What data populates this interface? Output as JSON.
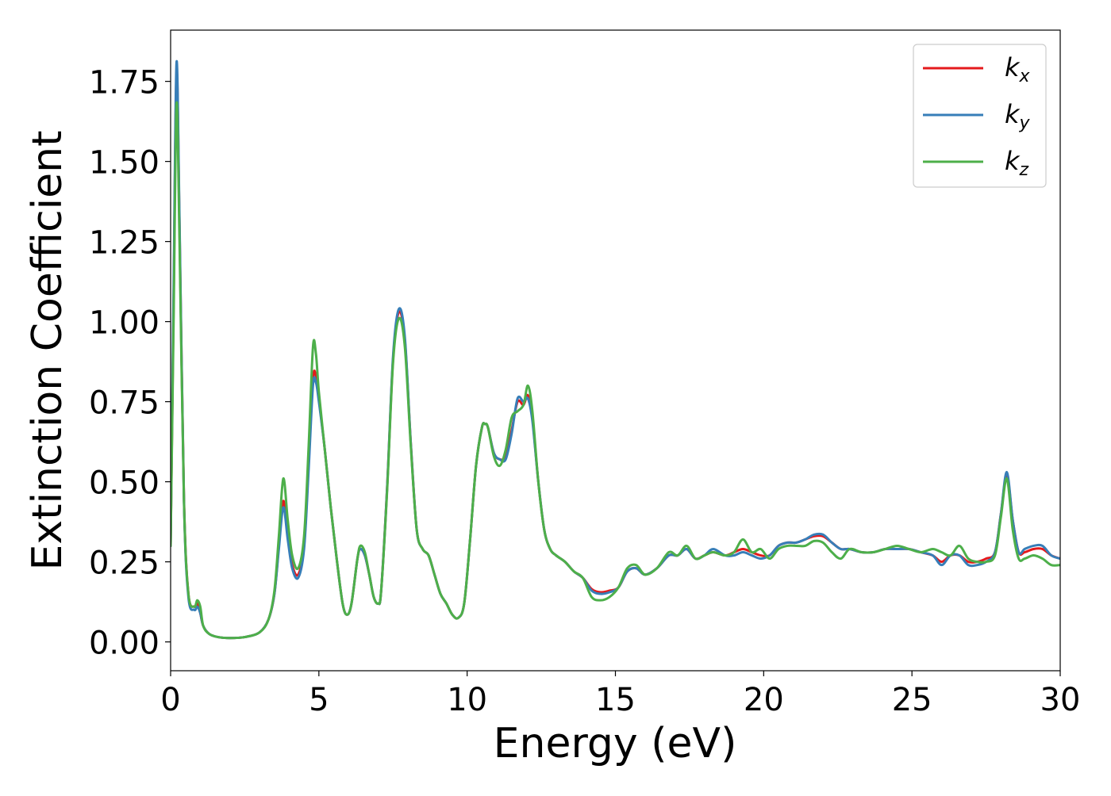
{
  "chart_data": {
    "type": "line",
    "title": "",
    "xlabel": "Energy (eV)",
    "ylabel": "Extinction Coefficient",
    "xlim": [
      0,
      30
    ],
    "ylim": [
      -0.09,
      1.91
    ],
    "xticks": [
      0,
      5,
      10,
      15,
      20,
      25,
      30
    ],
    "xtick_labels": [
      "0",
      "5",
      "10",
      "15",
      "20",
      "25",
      "30"
    ],
    "yticks": [
      0.0,
      0.25,
      0.5,
      0.75,
      1.0,
      1.25,
      1.5,
      1.75
    ],
    "ytick_labels": [
      "0.00",
      "0.25",
      "0.50",
      "0.75",
      "1.00",
      "1.25",
      "1.50",
      "1.75"
    ],
    "grid": false,
    "legend_position": "top-right",
    "x": [
      0,
      0.1,
      0.2,
      0.3,
      0.45,
      0.6,
      0.8,
      0.9,
      1.0,
      1.1,
      1.3,
      1.6,
      2.0,
      2.5,
      3.0,
      3.3,
      3.5,
      3.65,
      3.8,
      3.95,
      4.1,
      4.3,
      4.5,
      4.65,
      4.8,
      4.9,
      5.0,
      5.2,
      5.4,
      5.6,
      5.8,
      5.95,
      6.1,
      6.3,
      6.4,
      6.55,
      6.7,
      6.85,
      7.0,
      7.1,
      7.3,
      7.5,
      7.7,
      7.9,
      8.1,
      8.3,
      8.5,
      8.7,
      8.9,
      9.1,
      9.3,
      9.5,
      9.7,
      9.9,
      10.1,
      10.3,
      10.5,
      10.6,
      10.7,
      10.9,
      11.1,
      11.3,
      11.5,
      11.7,
      11.9,
      12.05,
      12.2,
      12.4,
      12.6,
      12.8,
      13.0,
      13.3,
      13.6,
      13.9,
      14.2,
      14.5,
      14.8,
      15.1,
      15.4,
      15.7,
      16.0,
      16.4,
      16.8,
      17.1,
      17.4,
      17.7,
      18.0,
      18.3,
      18.7,
      19.0,
      19.3,
      19.6,
      19.9,
      20.2,
      20.5,
      20.8,
      21.1,
      21.4,
      21.7,
      22.0,
      22.3,
      22.6,
      22.9,
      23.3,
      23.7,
      24.1,
      24.5,
      24.9,
      25.3,
      25.7,
      26.0,
      26.3,
      26.6,
      26.9,
      27.2,
      27.5,
      27.8,
      28.0,
      28.2,
      28.4,
      28.6,
      28.8,
      29.1,
      29.4,
      29.7,
      30.0
    ],
    "series": [
      {
        "name": "k_x",
        "label": "k",
        "subscript": "x",
        "color": "#e41a1c",
        "values": [
          0.3,
          1.05,
          1.78,
          1.3,
          0.45,
          0.15,
          0.11,
          0.12,
          0.09,
          0.05,
          0.025,
          0.015,
          0.012,
          0.015,
          0.03,
          0.07,
          0.15,
          0.3,
          0.44,
          0.33,
          0.24,
          0.21,
          0.3,
          0.55,
          0.82,
          0.83,
          0.76,
          0.6,
          0.42,
          0.26,
          0.12,
          0.085,
          0.12,
          0.26,
          0.29,
          0.27,
          0.21,
          0.14,
          0.12,
          0.16,
          0.48,
          0.88,
          1.03,
          0.94,
          0.62,
          0.35,
          0.29,
          0.27,
          0.21,
          0.15,
          0.12,
          0.085,
          0.075,
          0.12,
          0.32,
          0.55,
          0.67,
          0.68,
          0.67,
          0.59,
          0.57,
          0.58,
          0.66,
          0.75,
          0.74,
          0.77,
          0.7,
          0.5,
          0.35,
          0.29,
          0.27,
          0.25,
          0.22,
          0.2,
          0.165,
          0.155,
          0.16,
          0.17,
          0.22,
          0.23,
          0.21,
          0.23,
          0.27,
          0.27,
          0.29,
          0.26,
          0.27,
          0.28,
          0.27,
          0.28,
          0.29,
          0.28,
          0.27,
          0.27,
          0.3,
          0.31,
          0.31,
          0.32,
          0.33,
          0.33,
          0.31,
          0.29,
          0.29,
          0.28,
          0.28,
          0.29,
          0.29,
          0.29,
          0.28,
          0.27,
          0.25,
          0.27,
          0.27,
          0.25,
          0.25,
          0.26,
          0.28,
          0.4,
          0.52,
          0.38,
          0.28,
          0.28,
          0.29,
          0.29,
          0.27,
          0.26
        ]
      },
      {
        "name": "k_y",
        "label": "k",
        "subscript": "y",
        "color": "#377eb8",
        "values": [
          0.3,
          1.1,
          1.81,
          1.32,
          0.44,
          0.14,
          0.1,
          0.11,
          0.09,
          0.05,
          0.025,
          0.015,
          0.012,
          0.015,
          0.03,
          0.07,
          0.15,
          0.29,
          0.42,
          0.32,
          0.23,
          0.2,
          0.29,
          0.53,
          0.8,
          0.81,
          0.75,
          0.6,
          0.42,
          0.26,
          0.12,
          0.085,
          0.12,
          0.26,
          0.29,
          0.27,
          0.21,
          0.14,
          0.12,
          0.16,
          0.48,
          0.89,
          1.04,
          0.95,
          0.62,
          0.35,
          0.29,
          0.27,
          0.21,
          0.15,
          0.12,
          0.085,
          0.075,
          0.12,
          0.32,
          0.55,
          0.67,
          0.68,
          0.67,
          0.59,
          0.57,
          0.57,
          0.65,
          0.76,
          0.75,
          0.76,
          0.69,
          0.5,
          0.35,
          0.29,
          0.27,
          0.25,
          0.22,
          0.2,
          0.16,
          0.15,
          0.155,
          0.17,
          0.22,
          0.23,
          0.21,
          0.23,
          0.27,
          0.27,
          0.29,
          0.26,
          0.27,
          0.29,
          0.27,
          0.27,
          0.28,
          0.27,
          0.26,
          0.27,
          0.3,
          0.31,
          0.31,
          0.32,
          0.335,
          0.335,
          0.31,
          0.29,
          0.29,
          0.28,
          0.28,
          0.29,
          0.29,
          0.29,
          0.28,
          0.27,
          0.24,
          0.27,
          0.27,
          0.24,
          0.24,
          0.25,
          0.28,
          0.4,
          0.53,
          0.38,
          0.28,
          0.29,
          0.3,
          0.3,
          0.27,
          0.26
        ]
      },
      {
        "name": "k_z",
        "label": "k",
        "subscript": "z",
        "color": "#4daf4a",
        "values": [
          0.3,
          1.0,
          1.68,
          1.25,
          0.44,
          0.15,
          0.11,
          0.13,
          0.11,
          0.05,
          0.025,
          0.015,
          0.012,
          0.015,
          0.03,
          0.07,
          0.16,
          0.33,
          0.51,
          0.38,
          0.27,
          0.23,
          0.33,
          0.6,
          0.92,
          0.9,
          0.78,
          0.6,
          0.42,
          0.26,
          0.12,
          0.085,
          0.12,
          0.26,
          0.3,
          0.28,
          0.21,
          0.14,
          0.12,
          0.16,
          0.47,
          0.87,
          1.01,
          0.92,
          0.61,
          0.35,
          0.29,
          0.27,
          0.21,
          0.15,
          0.12,
          0.085,
          0.075,
          0.12,
          0.32,
          0.55,
          0.67,
          0.68,
          0.67,
          0.58,
          0.55,
          0.6,
          0.7,
          0.72,
          0.74,
          0.8,
          0.72,
          0.5,
          0.35,
          0.29,
          0.27,
          0.25,
          0.22,
          0.2,
          0.14,
          0.13,
          0.14,
          0.17,
          0.23,
          0.24,
          0.21,
          0.23,
          0.28,
          0.27,
          0.3,
          0.26,
          0.27,
          0.28,
          0.27,
          0.28,
          0.32,
          0.28,
          0.29,
          0.26,
          0.29,
          0.3,
          0.3,
          0.3,
          0.315,
          0.31,
          0.28,
          0.26,
          0.29,
          0.28,
          0.28,
          0.29,
          0.3,
          0.29,
          0.28,
          0.29,
          0.28,
          0.27,
          0.3,
          0.26,
          0.25,
          0.25,
          0.27,
          0.39,
          0.51,
          0.35,
          0.26,
          0.26,
          0.27,
          0.26,
          0.24,
          0.24
        ]
      }
    ]
  }
}
